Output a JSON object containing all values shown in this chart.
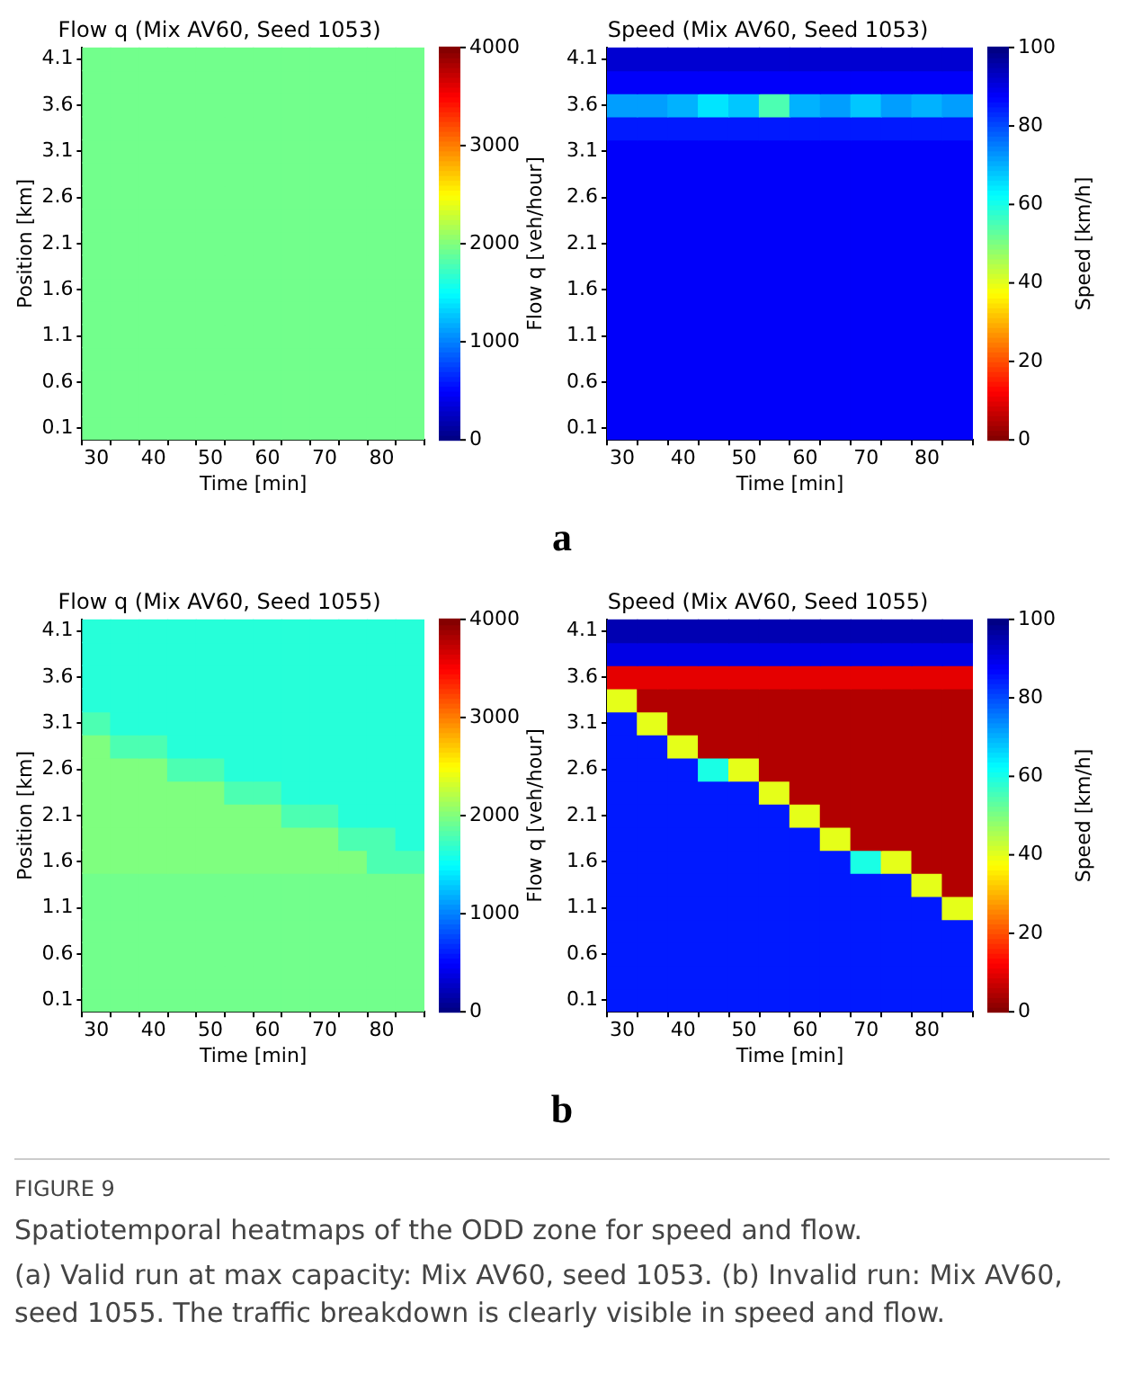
{
  "chart_data": [
    {
      "type": "heatmap",
      "title": "Flow q (Mix AV60, Seed 1053)",
      "xlabel": "Time [min]",
      "ylabel": "Position [km]",
      "clabel": "Flow q [veh/hour]",
      "grid": false,
      "categories": [
        "30",
        null,
        "40",
        null,
        "50",
        null,
        "60",
        null,
        "70",
        null,
        "80",
        null
      ],
      "y_categories": [
        "4.1",
        null,
        "3.6",
        null,
        "3.1",
        null,
        "2.6",
        null,
        "2.1",
        null,
        "1.6",
        null,
        "1.1",
        null,
        "0.6",
        null,
        "0.1"
      ],
      "colors": [
        "#00007f",
        "#0000ff",
        "#007fff",
        "#00ffff",
        "#7fff7f",
        "#ffff00",
        "#ff7f00",
        "#ff0000",
        "#7f0000"
      ],
      "clim": [
        0,
        4000
      ],
      "cticks": [
        0,
        1000,
        2000,
        3000,
        4000
      ],
      "annotations": [
        "a"
      ],
      "cells": [
        [
          1950,
          1950,
          1950,
          1950,
          1950,
          1950,
          1950,
          1950,
          1950,
          1950,
          1950,
          1950
        ],
        [
          1950,
          1950,
          1950,
          1950,
          1950,
          1950,
          1950,
          1950,
          1950,
          1950,
          1950,
          1950
        ],
        [
          1950,
          1950,
          1950,
          1950,
          1950,
          1950,
          1950,
          1950,
          1950,
          1950,
          1950,
          1950
        ],
        [
          1950,
          1950,
          1950,
          1950,
          1950,
          1950,
          1950,
          1950,
          1950,
          1950,
          1950,
          1950
        ],
        [
          1950,
          1950,
          1950,
          1950,
          1950,
          1950,
          1950,
          1950,
          1950,
          1950,
          1950,
          1950
        ],
        [
          1950,
          1950,
          1950,
          1950,
          1950,
          1950,
          1950,
          1950,
          1950,
          1950,
          1950,
          1950
        ],
        [
          1950,
          1950,
          1950,
          1950,
          1950,
          1950,
          1950,
          1950,
          1950,
          1950,
          1950,
          1950
        ],
        [
          1950,
          1950,
          1950,
          1950,
          1950,
          1950,
          1950,
          1950,
          1950,
          1950,
          1950,
          1950
        ],
        [
          1950,
          1950,
          1950,
          1950,
          1950,
          1950,
          1950,
          1950,
          1950,
          1950,
          1950,
          1950
        ],
        [
          1950,
          1950,
          1950,
          1950,
          1950,
          1950,
          1950,
          1950,
          1950,
          1950,
          1950,
          1950
        ],
        [
          1950,
          1950,
          1950,
          1950,
          1950,
          1950,
          1950,
          1950,
          1950,
          1950,
          1950,
          1950
        ],
        [
          1950,
          1950,
          1950,
          1950,
          1950,
          1950,
          1950,
          1950,
          1950,
          1950,
          1950,
          1950
        ],
        [
          1950,
          1950,
          1950,
          1950,
          1950,
          1950,
          1950,
          1950,
          1950,
          1950,
          1950,
          1950
        ],
        [
          1950,
          1950,
          1950,
          1950,
          1950,
          1950,
          1950,
          1950,
          1950,
          1950,
          1950,
          1950
        ],
        [
          1950,
          1950,
          1950,
          1950,
          1950,
          1950,
          1950,
          1950,
          1950,
          1950,
          1950,
          1950
        ],
        [
          1950,
          1950,
          1950,
          1950,
          1950,
          1950,
          1950,
          1950,
          1950,
          1950,
          1950,
          1950
        ],
        [
          1950,
          1950,
          1950,
          1950,
          1950,
          1950,
          1950,
          1950,
          1950,
          1950,
          1950,
          1950
        ]
      ]
    },
    {
      "type": "heatmap",
      "title": "Speed (Mix AV60, Seed 1053)",
      "xlabel": "Time [min]",
      "clabel": "Speed [km/h]",
      "grid": false,
      "categories": [
        "30",
        null,
        "40",
        null,
        "50",
        null,
        "60",
        null,
        "70",
        null,
        "80",
        null
      ],
      "y_categories": [
        "4.1",
        null,
        "3.6",
        null,
        "3.1",
        null,
        "2.6",
        null,
        "2.1",
        null,
        "1.6",
        null,
        "1.1",
        null,
        "0.6",
        null,
        "0.1"
      ],
      "colors": [
        "#7f0000",
        "#ff0000",
        "#ff7f00",
        "#ffff00",
        "#7fff7f",
        "#00ffff",
        "#007fff",
        "#0000ff",
        "#00007f"
      ],
      "clim": [
        0,
        100
      ],
      "cticks": [
        0,
        20,
        40,
        60,
        80,
        100
      ],
      "cells": [
        [
          92,
          92,
          92,
          92,
          92,
          92,
          92,
          92,
          92,
          92,
          92,
          92
        ],
        [
          88,
          88,
          88,
          88,
          88,
          88,
          88,
          88,
          88,
          88,
          88,
          88
        ],
        [
          72,
          72,
          70,
          65,
          68,
          55,
          70,
          72,
          68,
          72,
          70,
          72
        ],
        [
          85,
          85,
          85,
          85,
          85,
          85,
          85,
          85,
          85,
          85,
          85,
          85
        ],
        [
          88,
          88,
          88,
          88,
          88,
          88,
          88,
          88,
          88,
          88,
          88,
          88
        ],
        [
          88,
          88,
          88,
          88,
          88,
          88,
          88,
          88,
          88,
          88,
          88,
          88
        ],
        [
          88,
          88,
          88,
          88,
          88,
          88,
          88,
          88,
          88,
          88,
          88,
          88
        ],
        [
          88,
          88,
          88,
          88,
          88,
          88,
          88,
          88,
          88,
          88,
          88,
          88
        ],
        [
          88,
          88,
          88,
          88,
          88,
          88,
          88,
          88,
          88,
          88,
          88,
          88
        ],
        [
          88,
          88,
          88,
          88,
          88,
          88,
          88,
          88,
          88,
          88,
          88,
          88
        ],
        [
          88,
          88,
          88,
          88,
          88,
          88,
          88,
          88,
          88,
          88,
          88,
          88
        ],
        [
          88,
          88,
          88,
          88,
          88,
          88,
          88,
          88,
          88,
          88,
          88,
          88
        ],
        [
          88,
          88,
          88,
          88,
          88,
          88,
          88,
          88,
          88,
          88,
          88,
          88
        ],
        [
          88,
          88,
          88,
          88,
          88,
          88,
          88,
          88,
          88,
          88,
          88,
          88
        ],
        [
          88,
          88,
          88,
          88,
          88,
          88,
          88,
          88,
          88,
          88,
          88,
          88
        ],
        [
          88,
          88,
          88,
          88,
          88,
          88,
          88,
          88,
          88,
          88,
          88,
          88
        ],
        [
          88,
          88,
          88,
          88,
          88,
          88,
          88,
          88,
          88,
          88,
          88,
          88
        ]
      ]
    },
    {
      "type": "heatmap",
      "title": "Flow q (Mix AV60, Seed 1055)",
      "xlabel": "Time [min]",
      "ylabel": "Position [km]",
      "clabel": "Flow q [veh/hour]",
      "grid": false,
      "categories": [
        "30",
        null,
        "40",
        null,
        "50",
        null,
        "60",
        null,
        "70",
        null,
        "80",
        null
      ],
      "y_categories": [
        "4.1",
        null,
        "3.6",
        null,
        "3.1",
        null,
        "2.6",
        null,
        "2.1",
        null,
        "1.6",
        null,
        "1.1",
        null,
        "0.6",
        null,
        "0.1"
      ],
      "colors": [
        "#00007f",
        "#0000ff",
        "#007fff",
        "#00ffff",
        "#7fff7f",
        "#ffff00",
        "#ff7f00",
        "#ff0000",
        "#7f0000"
      ],
      "clim": [
        0,
        4000
      ],
      "cticks": [
        0,
        1000,
        2000,
        3000,
        4000
      ],
      "annotations": [
        "b"
      ],
      "cells": [
        [
          1650,
          1650,
          1650,
          1650,
          1650,
          1650,
          1650,
          1650,
          1650,
          1650,
          1650,
          1650
        ],
        [
          1650,
          1650,
          1650,
          1650,
          1650,
          1650,
          1650,
          1650,
          1650,
          1650,
          1650,
          1650
        ],
        [
          1650,
          1650,
          1650,
          1650,
          1650,
          1650,
          1650,
          1650,
          1650,
          1650,
          1650,
          1650
        ],
        [
          1650,
          1650,
          1650,
          1650,
          1650,
          1650,
          1650,
          1650,
          1650,
          1650,
          1650,
          1650
        ],
        [
          1800,
          1650,
          1650,
          1650,
          1650,
          1650,
          1650,
          1650,
          1650,
          1650,
          1650,
          1650
        ],
        [
          2000,
          1800,
          1800,
          1650,
          1650,
          1650,
          1650,
          1650,
          1650,
          1650,
          1650,
          1650
        ],
        [
          2000,
          2000,
          2000,
          1800,
          1800,
          1650,
          1650,
          1650,
          1650,
          1650,
          1650,
          1650
        ],
        [
          2000,
          2000,
          2000,
          2000,
          2000,
          1800,
          1800,
          1650,
          1650,
          1650,
          1650,
          1650
        ],
        [
          2000,
          2000,
          2000,
          2000,
          2000,
          2000,
          2000,
          1800,
          1800,
          1650,
          1650,
          1650
        ],
        [
          2000,
          2000,
          2000,
          2000,
          2000,
          2000,
          2000,
          2000,
          2000,
          1800,
          1800,
          1650
        ],
        [
          2000,
          2000,
          2000,
          2000,
          2000,
          2000,
          2000,
          2000,
          2000,
          2000,
          1800,
          1800
        ],
        [
          1950,
          1950,
          1950,
          1950,
          1950,
          1950,
          1950,
          1950,
          1950,
          1950,
          1950,
          1950
        ],
        [
          1950,
          1950,
          1950,
          1950,
          1950,
          1950,
          1950,
          1950,
          1950,
          1950,
          1950,
          1950
        ],
        [
          1950,
          1950,
          1950,
          1950,
          1950,
          1950,
          1950,
          1950,
          1950,
          1950,
          1950,
          1950
        ],
        [
          1950,
          1950,
          1950,
          1950,
          1950,
          1950,
          1950,
          1950,
          1950,
          1950,
          1950,
          1950
        ],
        [
          1950,
          1950,
          1950,
          1950,
          1950,
          1950,
          1950,
          1950,
          1950,
          1950,
          1950,
          1950
        ],
        [
          1950,
          1950,
          1950,
          1950,
          1950,
          1950,
          1950,
          1950,
          1950,
          1950,
          1950,
          1950
        ]
      ]
    },
    {
      "type": "heatmap",
      "title": "Speed (Mix AV60, Seed 1055)",
      "xlabel": "Time [min]",
      "clabel": "Speed [km/h]",
      "grid": false,
      "categories": [
        "30",
        null,
        "40",
        null,
        "50",
        null,
        "60",
        null,
        "70",
        null,
        "80",
        null
      ],
      "y_categories": [
        "4.1",
        null,
        "3.6",
        null,
        "3.1",
        null,
        "2.6",
        null,
        "2.1",
        null,
        "1.6",
        null,
        "1.1",
        null,
        "0.6",
        null,
        "0.1"
      ],
      "colors": [
        "#7f0000",
        "#ff0000",
        "#ff7f00",
        "#ffff00",
        "#7fff7f",
        "#00ffff",
        "#007fff",
        "#0000ff",
        "#00007f"
      ],
      "clim": [
        0,
        100
      ],
      "cticks": [
        0,
        20,
        40,
        60,
        80,
        100
      ],
      "annotations": [
        "FIGURE 9",
        "Spatiotemporal heatmaps of the ODD zone for speed and flow.",
        "(a) Valid run at max capacity: Mix AV60, seed 1053. (b) Invalid run: Mix AV60, seed 1055. The traffic breakdown is clearly visible in speed and flow."
      ],
      "cells": [
        [
          95,
          95,
          95,
          95,
          95,
          95,
          95,
          95,
          95,
          95,
          95,
          95
        ],
        [
          90,
          90,
          90,
          90,
          90,
          90,
          90,
          90,
          90,
          90,
          90,
          90
        ],
        [
          10,
          10,
          10,
          10,
          10,
          10,
          10,
          10,
          10,
          10,
          10,
          10
        ],
        [
          40,
          5,
          5,
          5,
          5,
          5,
          5,
          5,
          5,
          5,
          5,
          5
        ],
        [
          85,
          40,
          5,
          5,
          5,
          5,
          5,
          5,
          5,
          5,
          5,
          5
        ],
        [
          85,
          85,
          40,
          5,
          5,
          5,
          5,
          5,
          5,
          5,
          5,
          5
        ],
        [
          85,
          85,
          85,
          60,
          40,
          5,
          5,
          5,
          5,
          5,
          5,
          5
        ],
        [
          85,
          85,
          85,
          85,
          85,
          40,
          5,
          5,
          5,
          5,
          5,
          5
        ],
        [
          85,
          85,
          85,
          85,
          85,
          85,
          40,
          5,
          5,
          5,
          5,
          5
        ],
        [
          85,
          85,
          85,
          85,
          85,
          85,
          85,
          40,
          5,
          5,
          5,
          5
        ],
        [
          85,
          85,
          85,
          85,
          85,
          85,
          85,
          85,
          60,
          40,
          5,
          5
        ],
        [
          85,
          85,
          85,
          85,
          85,
          85,
          85,
          85,
          85,
          85,
          40,
          5
        ],
        [
          85,
          85,
          85,
          85,
          85,
          85,
          85,
          85,
          85,
          85,
          85,
          40
        ],
        [
          85,
          85,
          85,
          85,
          85,
          85,
          85,
          85,
          85,
          85,
          85,
          85
        ],
        [
          85,
          85,
          85,
          85,
          85,
          85,
          85,
          85,
          85,
          85,
          85,
          85
        ],
        [
          85,
          85,
          85,
          85,
          85,
          85,
          85,
          85,
          85,
          85,
          85,
          85
        ],
        [
          85,
          85,
          85,
          85,
          85,
          85,
          85,
          85,
          85,
          85,
          85,
          85
        ]
      ]
    }
  ]
}
